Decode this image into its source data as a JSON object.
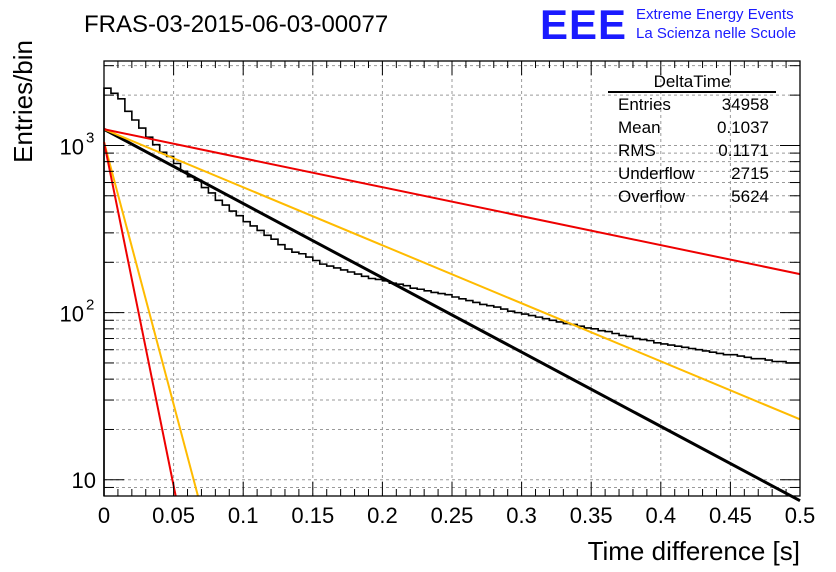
{
  "title": "FRAS-03-2015-06-03-00077",
  "brand": {
    "logo_text": "EEE",
    "line1": "Extreme Energy Events",
    "line2": "La Scienza nelle Scuole",
    "color": "#1a1aff"
  },
  "stats": {
    "name": "DeltaTime",
    "rows": [
      {
        "label": "Entries",
        "value": "34958"
      },
      {
        "label": "Mean",
        "value": "0.1037"
      },
      {
        "label": "RMS",
        "value": "0.1171"
      },
      {
        "label": "Underflow",
        "value": "2715"
      },
      {
        "label": "Overflow",
        "value": "5624"
      }
    ]
  },
  "chart_data": {
    "type": "line",
    "xlabel": "Time difference [s]",
    "ylabel": "Entries/bin",
    "xlim": [
      0,
      0.5
    ],
    "ylim": [
      8,
      3200
    ],
    "yscale": "log",
    "grid": true,
    "x_ticks": [
      "0",
      "0.05",
      "0.1",
      "0.15",
      "0.2",
      "0.25",
      "0.3",
      "0.35",
      "0.4",
      "0.45",
      "0.5"
    ],
    "y_ticks": [
      {
        "value": 10,
        "label": "10"
      },
      {
        "value": 100,
        "base": "10",
        "exp": "2"
      },
      {
        "value": 1000,
        "base": "10",
        "exp": "3"
      }
    ],
    "histogram": {
      "color": "#000000",
      "bin_width": 0.005,
      "x_start": 0,
      "values": [
        2200,
        2050,
        1900,
        1600,
        1420,
        1270,
        1120,
        1010,
        910,
        860,
        780,
        700,
        650,
        620,
        560,
        520,
        470,
        440,
        405,
        380,
        350,
        330,
        310,
        290,
        275,
        255,
        240,
        230,
        225,
        215,
        205,
        195,
        190,
        185,
        180,
        175,
        170,
        165,
        160,
        158,
        155,
        150,
        148,
        145,
        140,
        138,
        135,
        132,
        130,
        128,
        124,
        121,
        118,
        115,
        112,
        110,
        108,
        105,
        102,
        100,
        98,
        96,
        94,
        92,
        90,
        88,
        86,
        85,
        83,
        81,
        80,
        78,
        77,
        75,
        73,
        72,
        70,
        69,
        68,
        66,
        65,
        64,
        63,
        62,
        61,
        60,
        59,
        58,
        57,
        56,
        56,
        55,
        54,
        53,
        53,
        52,
        51,
        51,
        50,
        50
      ]
    },
    "series": [
      {
        "color": "#000000",
        "x": [
          0,
          0.5
        ],
        "y": [
          1250,
          7.5
        ]
      },
      {
        "color": "#ffbb00",
        "x": [
          0,
          0.5
        ],
        "y": [
          1250,
          23
        ]
      },
      {
        "color": "#ee0000",
        "x": [
          0,
          0.5
        ],
        "y": [
          1250,
          170
        ]
      },
      {
        "color": "#ffbb00",
        "x": [
          0,
          0.0675
        ],
        "y": [
          1050,
          8
        ]
      },
      {
        "color": "#ee0000",
        "x": [
          0,
          0.0515
        ],
        "y": [
          1050,
          8
        ]
      }
    ]
  }
}
